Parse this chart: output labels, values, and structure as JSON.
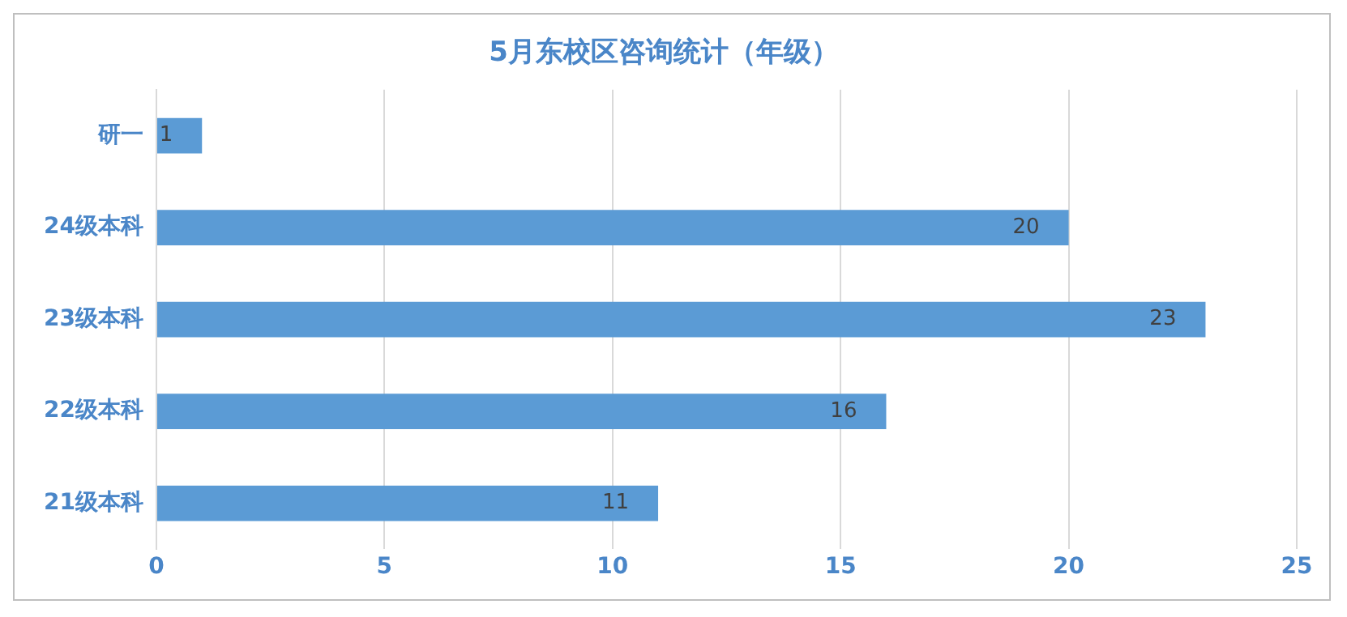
{
  "chart_data": {
    "type": "bar",
    "orientation": "horizontal",
    "title": "5月东校区咨询统计（年级）",
    "categories": [
      "研一",
      "24级本科",
      "23级本科",
      "22级本科",
      "21级本科"
    ],
    "values": [
      1,
      20,
      23,
      16,
      11
    ],
    "color": "#5b9bd5",
    "xlim": [
      0,
      25
    ],
    "xticks": [
      0,
      5,
      10,
      15,
      20,
      25
    ],
    "grid": "x",
    "data_labels": true,
    "legend": false
  }
}
